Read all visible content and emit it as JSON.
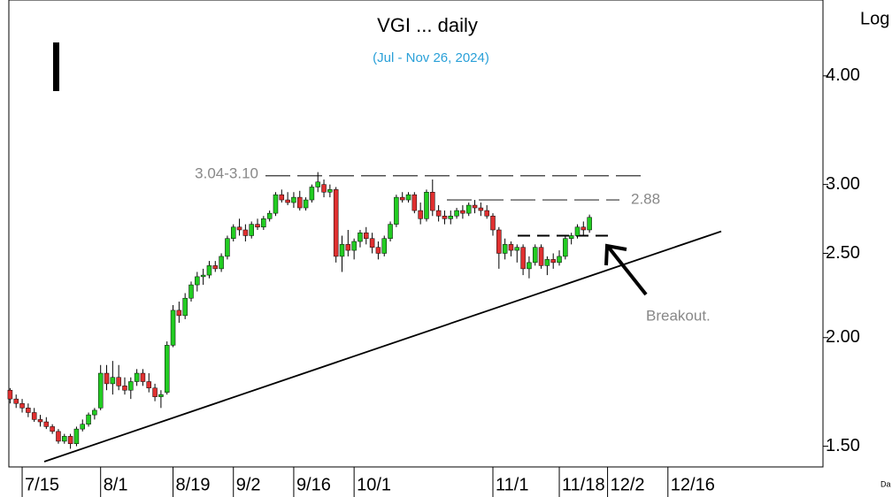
{
  "chart_data": {
    "type": "candlestick",
    "title": "VGI ... daily",
    "subtitle": "(Jul - Nov 26, 2024)",
    "axis_label": "Log",
    "corner_text": "Da",
    "log_scale": true,
    "up_color": "#22cc22",
    "down_color": "#e03030",
    "ylim": [
      1.42,
      4.89
    ],
    "yticks": [
      {
        "value": 4,
        "label": "4.00"
      },
      {
        "value": 3,
        "label": "3.00"
      },
      {
        "value": 2.5,
        "label": "2.50"
      },
      {
        "value": 2,
        "label": "2.00"
      },
      {
        "value": 1.5,
        "label": "1.50"
      }
    ],
    "categories": [
      null,
      null,
      "7/15",
      null,
      null,
      null,
      null,
      null,
      null,
      null,
      null,
      null,
      null,
      null,
      null,
      "8/1",
      null,
      null,
      null,
      null,
      null,
      null,
      null,
      null,
      null,
      null,
      null,
      "8/19",
      null,
      null,
      null,
      null,
      null,
      null,
      null,
      null,
      null,
      "9/2",
      null,
      null,
      null,
      null,
      null,
      null,
      null,
      null,
      null,
      "9/16",
      null,
      null,
      null,
      null,
      null,
      null,
      null,
      null,
      null,
      "10/1",
      null,
      null,
      null,
      null,
      null,
      null,
      null,
      null,
      null,
      null,
      null,
      null,
      null,
      null,
      null,
      null,
      null,
      null,
      null,
      null,
      null,
      null,
      "11/1",
      null,
      null,
      null,
      null,
      null,
      null,
      null,
      null,
      null,
      null,
      "11/18",
      null,
      null,
      null,
      null,
      null,
      null,
      null,
      "12/2",
      null,
      null,
      null,
      null,
      null,
      null,
      null,
      null,
      null,
      "12/16"
    ],
    "open": [
      1.74,
      1.7,
      1.68,
      1.66,
      1.64,
      1.61,
      1.6,
      1.58,
      1.56,
      1.52,
      1.54,
      1.51,
      1.57,
      1.59,
      1.63,
      1.66,
      1.82,
      1.77,
      1.8,
      1.76,
      1.74,
      1.78,
      1.82,
      1.78,
      1.75,
      1.71,
      1.73,
      1.96,
      2.15,
      2.12,
      2.22,
      2.3,
      2.35,
      2.36,
      2.42,
      2.4,
      2.48,
      2.6,
      2.68,
      2.66,
      2.62,
      2.7,
      2.68,
      2.74,
      2.78,
      2.92,
      2.88,
      2.86,
      2.9,
      2.82,
      2.88,
      2.98,
      3.0,
      2.94,
      2.96,
      2.48,
      2.56,
      2.52,
      2.58,
      2.64,
      2.6,
      2.54,
      2.5,
      2.6,
      2.7,
      2.9,
      2.88,
      2.92,
      2.8,
      2.74,
      2.94,
      2.8,
      2.76,
      2.74,
      2.76,
      2.8,
      2.78,
      2.84,
      2.82,
      2.8,
      2.76,
      2.66,
      2.5,
      2.56,
      2.52,
      2.54,
      2.4,
      2.44,
      2.54,
      2.42,
      2.46,
      2.44,
      2.48,
      2.6,
      2.62,
      2.68,
      2.66,
      null,
      null,
      null,
      null,
      null,
      null,
      null,
      null,
      null,
      null,
      null,
      null,
      null
    ],
    "high": [
      1.75,
      1.72,
      1.7,
      1.68,
      1.66,
      1.63,
      1.62,
      1.59,
      1.57,
      1.55,
      1.55,
      1.58,
      1.61,
      1.64,
      1.66,
      1.86,
      1.86,
      1.88,
      1.86,
      1.8,
      1.8,
      1.84,
      1.84,
      1.82,
      1.77,
      1.74,
      1.98,
      2.18,
      2.2,
      2.25,
      2.32,
      2.38,
      2.4,
      2.45,
      2.45,
      2.5,
      2.62,
      2.7,
      2.74,
      2.7,
      2.72,
      2.74,
      2.76,
      2.8,
      2.94,
      2.96,
      2.94,
      2.94,
      2.95,
      2.9,
      3.0,
      3.1,
      3.04,
      3.0,
      2.98,
      2.62,
      2.66,
      2.6,
      2.66,
      2.68,
      2.64,
      2.58,
      2.62,
      2.72,
      2.92,
      2.94,
      2.94,
      2.94,
      2.86,
      2.96,
      3.04,
      2.84,
      2.8,
      2.8,
      2.82,
      2.84,
      2.86,
      2.88,
      2.86,
      2.84,
      2.78,
      2.68,
      2.6,
      2.58,
      2.56,
      2.56,
      2.48,
      2.56,
      2.56,
      2.48,
      2.5,
      2.52,
      2.62,
      2.64,
      2.7,
      2.72,
      2.77,
      null,
      null,
      null,
      null,
      null,
      null,
      null,
      null,
      null,
      null,
      null,
      null,
      null
    ],
    "low": [
      1.68,
      1.66,
      1.64,
      1.62,
      1.6,
      1.58,
      1.57,
      1.55,
      1.51,
      1.51,
      1.49,
      1.5,
      1.56,
      1.58,
      1.61,
      1.65,
      1.74,
      1.72,
      1.74,
      1.72,
      1.7,
      1.76,
      1.76,
      1.73,
      1.69,
      1.66,
      1.72,
      1.95,
      2.08,
      2.1,
      2.2,
      2.26,
      2.3,
      2.34,
      2.38,
      2.38,
      2.46,
      2.58,
      2.62,
      2.58,
      2.6,
      2.66,
      2.66,
      2.72,
      2.76,
      2.86,
      2.84,
      2.82,
      2.8,
      2.8,
      2.86,
      2.94,
      2.9,
      2.9,
      2.44,
      2.38,
      2.48,
      2.46,
      2.54,
      2.56,
      2.5,
      2.46,
      2.48,
      2.58,
      2.68,
      2.86,
      2.86,
      2.78,
      2.7,
      2.72,
      2.76,
      2.72,
      2.7,
      2.7,
      2.74,
      2.74,
      2.76,
      2.78,
      2.76,
      2.74,
      2.62,
      2.4,
      2.46,
      2.48,
      2.44,
      2.36,
      2.34,
      2.42,
      2.4,
      2.36,
      2.4,
      2.42,
      2.46,
      2.56,
      2.6,
      2.62,
      2.64,
      null,
      null,
      null,
      null,
      null,
      null,
      null,
      null,
      null,
      null,
      null,
      null,
      null
    ],
    "close": [
      1.7,
      1.68,
      1.66,
      1.64,
      1.61,
      1.6,
      1.58,
      1.56,
      1.52,
      1.54,
      1.51,
      1.57,
      1.59,
      1.63,
      1.65,
      1.82,
      1.77,
      1.8,
      1.76,
      1.74,
      1.78,
      1.82,
      1.78,
      1.75,
      1.71,
      1.72,
      1.96,
      2.15,
      2.12,
      2.22,
      2.3,
      2.35,
      2.36,
      2.42,
      2.4,
      2.48,
      2.6,
      2.68,
      2.66,
      2.62,
      2.7,
      2.68,
      2.74,
      2.78,
      2.92,
      2.88,
      2.86,
      2.9,
      2.82,
      2.88,
      2.98,
      3.02,
      2.94,
      2.96,
      2.48,
      2.56,
      2.52,
      2.58,
      2.64,
      2.6,
      2.54,
      2.5,
      2.6,
      2.7,
      2.9,
      2.88,
      2.92,
      2.8,
      2.74,
      2.94,
      2.8,
      2.76,
      2.74,
      2.76,
      2.8,
      2.78,
      2.84,
      2.82,
      2.8,
      2.76,
      2.66,
      2.5,
      2.56,
      2.52,
      2.54,
      2.4,
      2.44,
      2.54,
      2.42,
      2.46,
      2.44,
      2.48,
      2.6,
      2.62,
      2.68,
      2.66,
      2.75,
      null,
      null,
      null,
      null,
      null,
      null,
      null,
      null,
      null,
      null,
      null,
      null,
      null
    ],
    "levels": [
      {
        "label": "3.04-3.10",
        "value": 3.07
      },
      {
        "label": "2.88",
        "value": 2.88
      },
      {
        "value": 2.62
      }
    ],
    "trendline": [
      1.44,
      2.65
    ],
    "annotation": "Breakout."
  }
}
